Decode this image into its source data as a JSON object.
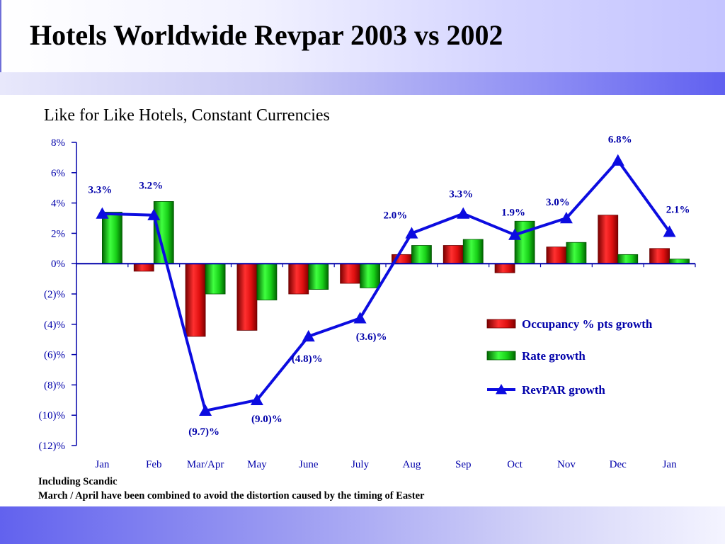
{
  "header": {
    "title": "Hotels Worldwide Revpar 2003 vs 2002",
    "subtitle": "Like for Like Hotels, Constant Currencies"
  },
  "notes": [
    "Including Scandic",
    "March / April have been combined to avoid the distortion caused by the timing of Easter"
  ],
  "colors": {
    "occupancy": "#d81010",
    "rate": "#10c010",
    "revpar": "#0c0ce0",
    "axis": "#0000aa"
  },
  "chart_data": {
    "type": "bar",
    "categories": [
      "Jan",
      "Feb",
      "Mar/Apr",
      "May",
      "June",
      "July",
      "Aug",
      "Sep",
      "Oct",
      "Nov",
      "Dec",
      "Jan"
    ],
    "ylim": [
      -12,
      8
    ],
    "yticks": [
      8,
      6,
      4,
      2,
      0,
      -2,
      -4,
      -6,
      -8,
      -10,
      -12
    ],
    "ytick_labels": [
      "8%",
      "6%",
      "4%",
      "2%",
      "0%",
      "(2)%",
      "(4)%",
      "(6)%",
      "(8)%",
      "(10)%",
      "(12)%"
    ],
    "grid": false,
    "legend_position": "right",
    "series": [
      {
        "name": "Occupancy %  pts growth",
        "kind": "bar",
        "values": [
          0,
          -0.5,
          -4.8,
          -4.4,
          -2.0,
          -1.3,
          0.6,
          1.2,
          -0.6,
          1.1,
          3.2,
          1.0
        ]
      },
      {
        "name": "Rate growth",
        "kind": "bar",
        "values": [
          3.4,
          4.1,
          -2.0,
          -2.4,
          -1.7,
          -1.6,
          1.2,
          1.6,
          2.8,
          1.4,
          0.6,
          0.3
        ]
      },
      {
        "name": "RevPAR growth",
        "kind": "line",
        "values": [
          3.3,
          3.2,
          -9.7,
          -9.0,
          -4.8,
          -3.6,
          2.0,
          3.3,
          1.9,
          3.0,
          6.8,
          2.1
        ],
        "labels": [
          "3.3%",
          "3.2%",
          "(9.7)%",
          "(9.0)%",
          "(4.8)%",
          "(3.6)%",
          "2.0%",
          "3.3%",
          "1.9%",
          "3.0%",
          "6.8%",
          "2.1%"
        ]
      }
    ]
  }
}
